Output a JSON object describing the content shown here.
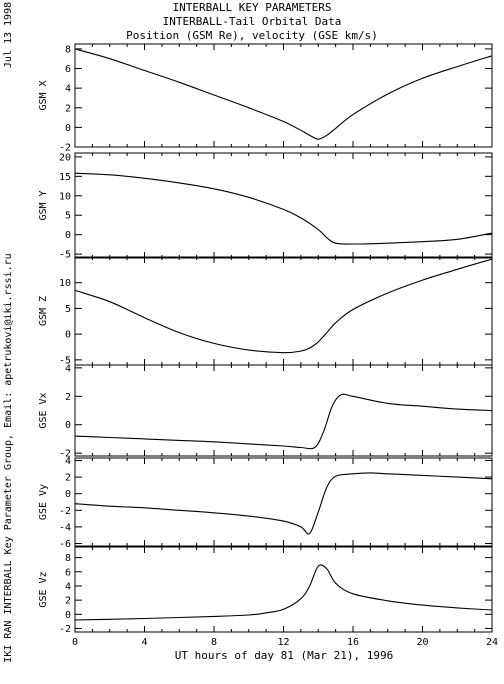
{
  "header": {
    "title_lines": [
      "INTERBALL KEY PARAMETERS",
      "INTERBALL-Tail Orbital Data",
      "Position (GSM Re), velocity (GSE km/s)"
    ],
    "date_label": "Jul 13 1998",
    "side_credit": "IKI RAN INTERBALL Key Parameter Group, Email: apetrukovi@iki.rssi.ru"
  },
  "chart_data": {
    "type": "line",
    "xlabel": "UT hours of day  81 (Mar 21), 1996",
    "xlim": [
      0,
      24
    ],
    "x_ticks": [
      0,
      4,
      8,
      12,
      16,
      20,
      24
    ],
    "panels": [
      {
        "ylabel": "GSM X",
        "ylim": [
          -2,
          8.5
        ],
        "y_ticks": [
          -2,
          0,
          2,
          4,
          6,
          8
        ],
        "x": [
          0,
          2,
          4,
          6,
          8,
          10,
          12,
          13,
          13.5,
          14,
          14.5,
          15,
          16,
          18,
          20,
          22,
          24
        ],
        "y": [
          8.0,
          7.0,
          5.8,
          4.6,
          3.3,
          2.0,
          0.6,
          -0.3,
          -0.8,
          -1.2,
          -0.8,
          -0.1,
          1.3,
          3.4,
          5.0,
          6.2,
          7.3
        ]
      },
      {
        "ylabel": "GSM Y",
        "ylim": [
          -6,
          21
        ],
        "y_ticks": [
          -5,
          0,
          5,
          10,
          15,
          20
        ],
        "x": [
          0,
          2,
          4,
          6,
          8,
          10,
          12,
          13,
          14,
          14.5,
          15,
          16,
          18,
          20,
          22,
          24
        ],
        "y": [
          15.8,
          15.4,
          14.5,
          13.3,
          11.8,
          9.6,
          6.5,
          4.3,
          1.3,
          -0.8,
          -2.2,
          -2.4,
          -2.2,
          -1.8,
          -1.2,
          0.4
        ]
      },
      {
        "ylabel": "GSM Z",
        "ylim": [
          -6,
          15
        ],
        "y_ticks": [
          -5,
          0,
          5,
          10
        ],
        "x": [
          0,
          2,
          4,
          6,
          8,
          10,
          12,
          13,
          13.5,
          14,
          14.5,
          15,
          16,
          18,
          20,
          22,
          24
        ],
        "y": [
          8.5,
          6.3,
          3.2,
          0.3,
          -1.8,
          -3.1,
          -3.6,
          -3.3,
          -2.7,
          -1.5,
          0.3,
          2.2,
          4.8,
          8.0,
          10.5,
          12.6,
          14.6
        ]
      },
      {
        "ylabel": "GSE Vx",
        "ylim": [
          -2.2,
          4.2
        ],
        "y_ticks": [
          -2,
          0,
          2,
          4
        ],
        "x": [
          0,
          2,
          4,
          6,
          8,
          10,
          12,
          13,
          13.8,
          14.3,
          14.8,
          15.3,
          16,
          18,
          20,
          22,
          24
        ],
        "y": [
          -0.8,
          -0.9,
          -1.0,
          -1.1,
          -1.2,
          -1.35,
          -1.5,
          -1.6,
          -1.6,
          -0.5,
          1.3,
          2.1,
          2.0,
          1.5,
          1.3,
          1.1,
          1.0
        ]
      },
      {
        "ylabel": "GSE Vy",
        "ylim": [
          -6.3,
          4.3
        ],
        "y_ticks": [
          -6,
          -4,
          -2,
          0,
          2,
          4
        ],
        "x": [
          0,
          2,
          4,
          6,
          8,
          10,
          12,
          13,
          13.5,
          14,
          14.5,
          15,
          16,
          17,
          18,
          20,
          22,
          24
        ],
        "y": [
          -1.2,
          -1.5,
          -1.7,
          -2.0,
          -2.3,
          -2.7,
          -3.3,
          -4.0,
          -4.8,
          -2.2,
          0.8,
          2.1,
          2.4,
          2.5,
          2.4,
          2.2,
          2.0,
          1.8
        ]
      },
      {
        "ylabel": "GSE Vz",
        "ylim": [
          -2.5,
          9.5
        ],
        "y_ticks": [
          -2,
          0,
          2,
          4,
          6,
          8
        ],
        "x": [
          0,
          2,
          4,
          6,
          8,
          10,
          11,
          12,
          13,
          13.5,
          14,
          14.5,
          15,
          16,
          18,
          20,
          22,
          24
        ],
        "y": [
          -0.8,
          -0.7,
          -0.6,
          -0.45,
          -0.3,
          -0.1,
          0.2,
          0.7,
          2.2,
          4.0,
          6.8,
          6.4,
          4.4,
          2.9,
          1.9,
          1.3,
          0.9,
          0.6
        ]
      }
    ]
  }
}
